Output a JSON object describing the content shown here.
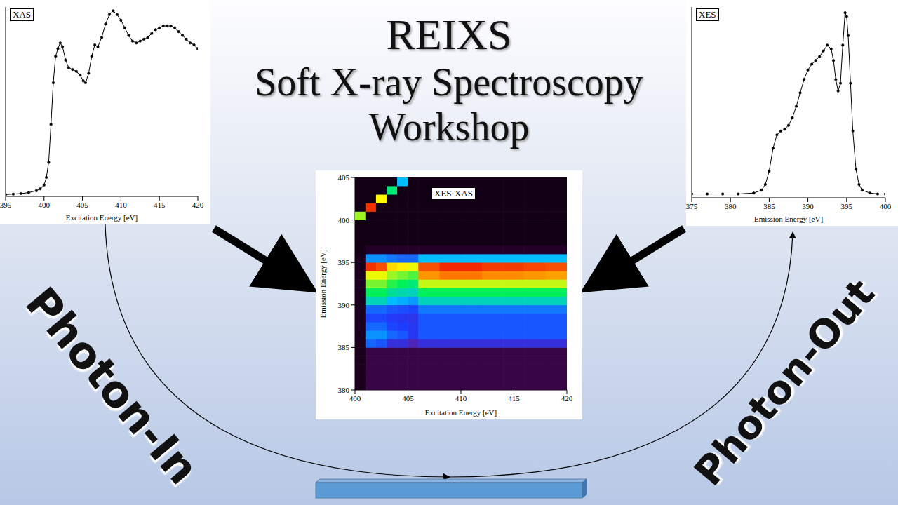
{
  "title_lines": [
    "REIXS",
    "Soft X-ray Spectroscopy",
    "Workshop"
  ],
  "side_labels": [
    "Photon-In",
    "Photon-Out"
  ],
  "chart_data": [
    {
      "type": "line",
      "title": "XAS",
      "xlabel": "Excitation Energy [eV]",
      "xlim": [
        395,
        420
      ],
      "xticks": [
        395,
        400,
        405,
        410,
        415,
        420
      ],
      "ylim": [
        0,
        1
      ],
      "tick_labels": "x",
      "color": "#000000",
      "marker": "circle",
      "x": [
        395,
        396,
        397,
        398,
        399,
        399.5,
        400,
        400.3,
        400.6,
        400.9,
        401.2,
        401.5,
        401.8,
        402.1,
        402.4,
        402.8,
        403.2,
        403.7,
        404.2,
        404.7,
        405.1,
        405.4,
        405.8,
        406.2,
        406.6,
        407,
        407.5,
        408,
        408.5,
        409,
        409.5,
        410,
        410.5,
        411,
        411.5,
        412,
        412.5,
        413,
        413.5,
        414,
        414.5,
        415,
        415.5,
        416,
        416.5,
        417,
        417.5,
        418,
        418.5,
        419,
        419.5,
        420
      ],
      "values": [
        0.01,
        0.012,
        0.015,
        0.02,
        0.03,
        0.04,
        0.06,
        0.1,
        0.18,
        0.38,
        0.6,
        0.74,
        0.78,
        0.81,
        0.79,
        0.72,
        0.68,
        0.67,
        0.66,
        0.64,
        0.61,
        0.6,
        0.65,
        0.74,
        0.8,
        0.79,
        0.84,
        0.91,
        0.96,
        0.98,
        0.96,
        0.93,
        0.89,
        0.85,
        0.82,
        0.81,
        0.82,
        0.83,
        0.84,
        0.86,
        0.88,
        0.89,
        0.9,
        0.9,
        0.9,
        0.89,
        0.87,
        0.85,
        0.83,
        0.81,
        0.8,
        0.78
      ]
    },
    {
      "type": "heatmap",
      "title": "XES-XAS",
      "xlabel": "Excitation Energy [eV]",
      "ylabel": "Emission Energy [eV]",
      "xlim": [
        400,
        420
      ],
      "xticks": [
        400,
        405,
        410,
        415,
        420
      ],
      "ylim": [
        380,
        405
      ],
      "yticks": [
        380,
        385,
        390,
        395,
        400,
        405
      ],
      "x_bins": [
        400,
        401,
        402,
        403,
        404,
        405,
        406,
        408,
        410,
        412,
        414,
        416,
        418,
        420
      ],
      "y_bins": [
        380,
        381,
        382,
        383,
        384,
        385,
        386,
        387,
        388,
        389,
        390,
        391,
        392,
        393,
        394,
        395,
        396,
        397,
        398,
        399,
        400,
        401,
        402,
        403,
        404,
        405
      ],
      "cells": [
        [
          0.06,
          0.12,
          0.12,
          0.12,
          0.12,
          0.12,
          0.12,
          0.12,
          0.12,
          0.12,
          0.12,
          0.12,
          0.12
        ],
        [
          0.06,
          0.12,
          0.12,
          0.12,
          0.12,
          0.12,
          0.12,
          0.12,
          0.12,
          0.12,
          0.12,
          0.12,
          0.12
        ],
        [
          0.06,
          0.12,
          0.12,
          0.12,
          0.12,
          0.12,
          0.12,
          0.12,
          0.12,
          0.12,
          0.12,
          0.12,
          0.12
        ],
        [
          0.06,
          0.12,
          0.12,
          0.12,
          0.12,
          0.12,
          0.12,
          0.12,
          0.12,
          0.12,
          0.12,
          0.12,
          0.12
        ],
        [
          0.06,
          0.12,
          0.12,
          0.12,
          0.12,
          0.12,
          0.12,
          0.12,
          0.12,
          0.12,
          0.12,
          0.12,
          0.12
        ],
        [
          0.06,
          0.4,
          0.38,
          0.3,
          0.3,
          0.25,
          0.3,
          0.3,
          0.3,
          0.3,
          0.3,
          0.3,
          0.3
        ],
        [
          0.06,
          0.45,
          0.45,
          0.4,
          0.38,
          0.33,
          0.38,
          0.38,
          0.38,
          0.38,
          0.38,
          0.38,
          0.38
        ],
        [
          0.06,
          0.4,
          0.4,
          0.36,
          0.35,
          0.33,
          0.38,
          0.38,
          0.38,
          0.38,
          0.38,
          0.38,
          0.38
        ],
        [
          0.06,
          0.36,
          0.36,
          0.34,
          0.33,
          0.32,
          0.38,
          0.38,
          0.38,
          0.38,
          0.38,
          0.38,
          0.38
        ],
        [
          0.06,
          0.4,
          0.4,
          0.38,
          0.37,
          0.36,
          0.42,
          0.42,
          0.42,
          0.42,
          0.42,
          0.42,
          0.42
        ],
        [
          0.06,
          0.55,
          0.55,
          0.5,
          0.48,
          0.46,
          0.55,
          0.55,
          0.55,
          0.55,
          0.55,
          0.55,
          0.55
        ],
        [
          0.06,
          0.62,
          0.62,
          0.58,
          0.56,
          0.55,
          0.62,
          0.62,
          0.62,
          0.62,
          0.62,
          0.62,
          0.62
        ],
        [
          0.06,
          0.68,
          0.68,
          0.64,
          0.62,
          0.6,
          0.72,
          0.72,
          0.72,
          0.72,
          0.72,
          0.72,
          0.72
        ],
        [
          0.06,
          0.74,
          0.74,
          0.7,
          0.68,
          0.66,
          0.85,
          0.88,
          0.88,
          0.86,
          0.86,
          0.85,
          0.84
        ],
        [
          0.06,
          0.95,
          0.92,
          0.78,
          0.76,
          0.74,
          0.92,
          0.96,
          0.96,
          0.94,
          0.94,
          0.93,
          0.92
        ],
        [
          0.06,
          0.45,
          0.45,
          0.42,
          0.4,
          0.4,
          0.5,
          0.5,
          0.5,
          0.5,
          0.5,
          0.5,
          0.5
        ],
        [
          0.04,
          0.08,
          0.08,
          0.08,
          0.08,
          0.08,
          0.08,
          0.08,
          0.08,
          0.08,
          0.08,
          0.08,
          0.08
        ],
        [
          0.04,
          0.04,
          0.04,
          0.04,
          0.04,
          0.04,
          0.04,
          0.04,
          0.04,
          0.04,
          0.04,
          0.04,
          0.04
        ],
        [
          0.04,
          0.04,
          0.04,
          0.04,
          0.04,
          0.04,
          0.04,
          0.04,
          0.04,
          0.04,
          0.04,
          0.04,
          0.04
        ],
        [
          0.04,
          0.04,
          0.04,
          0.04,
          0.04,
          0.04,
          0.04,
          0.04,
          0.04,
          0.04,
          0.04,
          0.04,
          0.04
        ],
        [
          0.7,
          0.04,
          0.04,
          0.04,
          0.04,
          0.04,
          0.04,
          0.04,
          0.04,
          0.04,
          0.04,
          0.04,
          0.04
        ],
        [
          0.04,
          0.95,
          0.04,
          0.04,
          0.04,
          0.04,
          0.04,
          0.04,
          0.04,
          0.04,
          0.04,
          0.04,
          0.04
        ],
        [
          0.04,
          0.04,
          0.75,
          0.04,
          0.04,
          0.04,
          0.04,
          0.04,
          0.04,
          0.04,
          0.04,
          0.04,
          0.04
        ],
        [
          0.04,
          0.04,
          0.04,
          0.6,
          0.04,
          0.04,
          0.04,
          0.04,
          0.04,
          0.04,
          0.04,
          0.04,
          0.04
        ],
        [
          0.04,
          0.04,
          0.04,
          0.04,
          0.5,
          0.04,
          0.04,
          0.04,
          0.04,
          0.04,
          0.04,
          0.04,
          0.04
        ]
      ]
    },
    {
      "type": "line",
      "title": "XES",
      "xlabel": "Emission Energy [eV]",
      "xlim": [
        375,
        400
      ],
      "xticks": [
        375,
        380,
        385,
        390,
        395,
        400
      ],
      "ylim": [
        0,
        1
      ],
      "tick_labels": "x",
      "color": "#000000",
      "marker": "circle",
      "x": [
        375,
        377,
        379,
        381,
        383,
        384,
        384.5,
        385,
        385.5,
        386,
        386.5,
        387,
        387.5,
        388,
        388.5,
        389,
        389.5,
        390,
        390.5,
        391,
        391.5,
        392,
        392.5,
        393,
        393.3,
        393.6,
        393.9,
        394.2,
        394.5,
        394.8,
        395,
        395.2,
        395.5,
        395.8,
        396.2,
        396.6,
        397,
        398,
        399,
        400
      ],
      "values": [
        0.02,
        0.02,
        0.02,
        0.02,
        0.025,
        0.04,
        0.07,
        0.14,
        0.26,
        0.33,
        0.35,
        0.36,
        0.38,
        0.42,
        0.48,
        0.55,
        0.62,
        0.67,
        0.7,
        0.72,
        0.74,
        0.77,
        0.8,
        0.78,
        0.72,
        0.62,
        0.56,
        0.6,
        0.8,
        0.97,
        0.95,
        0.85,
        0.6,
        0.35,
        0.15,
        0.07,
        0.04,
        0.025,
        0.02,
        0.02
      ]
    }
  ]
}
